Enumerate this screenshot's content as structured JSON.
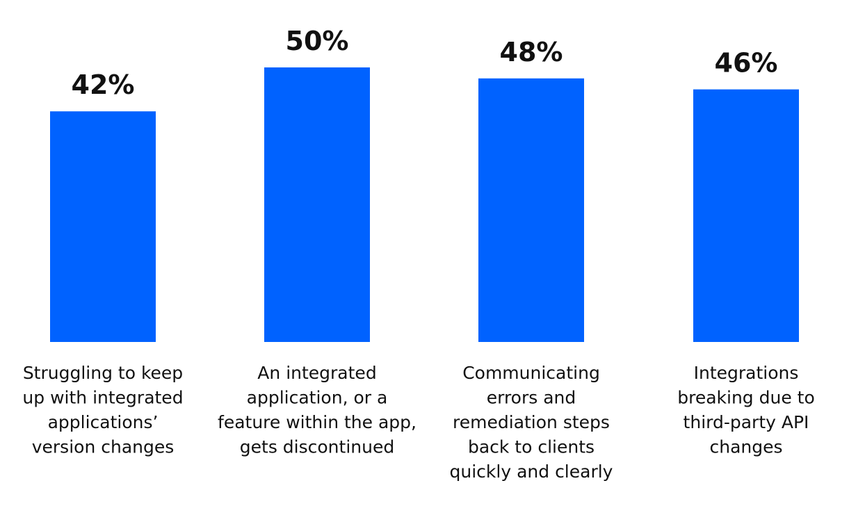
{
  "chart_data": {
    "type": "bar",
    "categories": [
      [
        "Struggling to keep",
        "up with integrated",
        "applications’",
        "version changes"
      ],
      [
        "An integrated",
        "application, or a",
        "feature within the app,",
        "gets discontinued"
      ],
      [
        "Communicating",
        "errors and",
        "remediation steps",
        "back to clients",
        "quickly and clearly"
      ],
      [
        "Integrations",
        "breaking due to",
        "third-party API",
        "changes"
      ]
    ],
    "values": [
      42,
      50,
      48,
      46
    ],
    "value_labels": [
      "42%",
      "50%",
      "48%",
      "46%"
    ],
    "unit": "%",
    "bar_color": "#0062FF",
    "text_color": "#111111",
    "title": "",
    "xlabel": "",
    "ylabel": "",
    "ylim": [
      0,
      50
    ],
    "grid": false,
    "legend": "none"
  }
}
